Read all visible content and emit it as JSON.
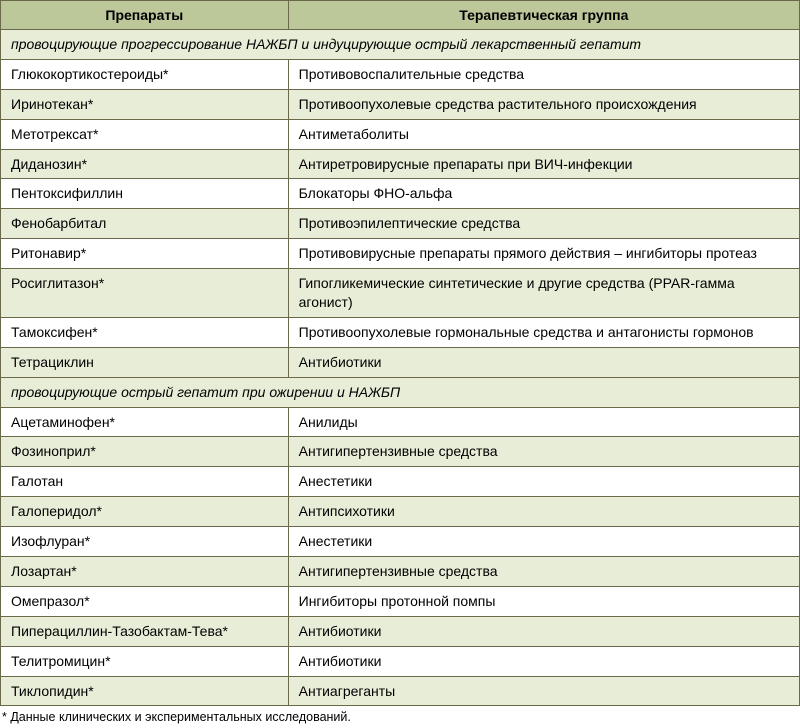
{
  "table": {
    "headers": {
      "col1": "Препараты",
      "col2": "Терапевтическая группа"
    },
    "columns": {
      "col1_pct": 36,
      "col2_pct": 64
    },
    "colors": {
      "header_bg": "#bcc79a",
      "alt_bg": "#e8edd8",
      "plain_bg": "#ffffff",
      "border": "#6a6a4a",
      "text": "#000000"
    },
    "font_size": 14,
    "sections": [
      {
        "title": "провоцирующие прогрессирование НАЖБП и индуцирующие острый лекарственный гепатит",
        "rows": [
          {
            "drug": "Глюкокортикостероиды*",
            "group": "Противовоспалительные средства"
          },
          {
            "drug": "Иринотекан*",
            "group": "Противоопухолевые средства растительного происхождения"
          },
          {
            "drug": "Метотрексат*",
            "group": "Антиметаболиты"
          },
          {
            "drug": "Диданозин*",
            "group": "Антиретровирусные препараты при ВИЧ-инфекции"
          },
          {
            "drug": "Пентоксифиллин",
            "group": "Блокаторы ФНО-альфа"
          },
          {
            "drug": "Фенобарбитал",
            "group": "Противоэпилептические средства"
          },
          {
            "drug": "Ритонавир*",
            "group": "Противовирусные препараты прямого действия – ингибиторы протеаз"
          },
          {
            "drug": "Росиглитазон*",
            "group": "Гипогликемические синтетические и другие средства (PPAR-гамма агонист)"
          },
          {
            "drug": "Тамоксифен*",
            "group": "Противоопухолевые гормональные средства и антагонисты гормонов"
          },
          {
            "drug": "Тетрациклин",
            "group": "Антибиотики"
          }
        ]
      },
      {
        "title": "провоцирующие острый гепатит при ожирении и НАЖБП",
        "rows": [
          {
            "drug": "Ацетаминофен*",
            "group": "Анилиды"
          },
          {
            "drug": "Фозиноприл*",
            "group": "Антигипертензивные средства"
          },
          {
            "drug": "Галотан",
            "group": "Анестетики"
          },
          {
            "drug": "Галоперидол*",
            "group": "Антипсихотики"
          },
          {
            "drug": "Изофлуран*",
            "group": "Анестетики"
          },
          {
            "drug": "Лозартан*",
            "group": "Антигипертензивные средства"
          },
          {
            "drug": "Омепразол*",
            "group": "Ингибиторы протонной помпы"
          },
          {
            "drug": "Пиперациллин-Тазобактам-Тева*",
            "group": "Антибиотики"
          },
          {
            "drug": "Телитромицин*",
            "group": "Антибиотики"
          },
          {
            "drug": "Тиклопидин*",
            "group": "Антиагреганты"
          }
        ]
      }
    ]
  },
  "footnote": "* Данные клинических и экспериментальных исследований."
}
